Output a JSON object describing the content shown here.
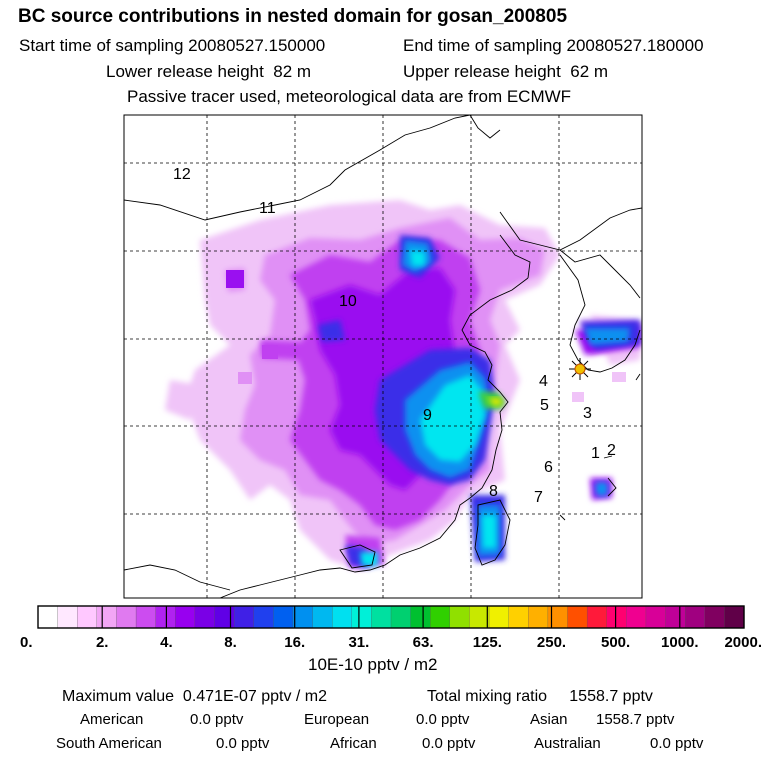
{
  "title": "BC  source contributions in nested domain for gosan_200805",
  "sampling": {
    "start_label": "Start time of sampling",
    "start_value": "20080527.150000",
    "end_label": "End time of sampling",
    "end_value": "20080527.180000"
  },
  "release": {
    "lower_label": "Lower release height",
    "lower_value": "82 m",
    "upper_label": "Upper release height",
    "upper_value": "62 m"
  },
  "note": "Passive tracer used, meteorological data are from ECMWF",
  "region_labels": [
    "12",
    "11",
    "10",
    "9",
    "8",
    "7",
    "6",
    "5",
    "4",
    "3",
    "2",
    "1"
  ],
  "colorbar": {
    "ticks": [
      "0.",
      "2.",
      "4.",
      "8.",
      "16.",
      "31.",
      "63.",
      "125.",
      "250.",
      "500.",
      "1000.",
      "2000."
    ],
    "unit": "10E-10 pptv / m2",
    "colors": [
      "#ffffff",
      "#ffe8ff",
      "#ffc8ff",
      "#f2a6f5",
      "#e07af0",
      "#cc4cf0",
      "#b022f0",
      "#9800f0",
      "#7a00e6",
      "#6000e6",
      "#4020e6",
      "#2040ee",
      "#0060f0",
      "#0090f0",
      "#00b8f0",
      "#00e0f0",
      "#00f0d8",
      "#00e0a0",
      "#00d070",
      "#00c030",
      "#30d000",
      "#90e000",
      "#c8e800",
      "#f0f000",
      "#ffd000",
      "#ffb000",
      "#ff9000",
      "#ff5000",
      "#ff1a3a",
      "#ff0070",
      "#f00090",
      "#d80098",
      "#c00098",
      "#a00080",
      "#800060",
      "#600048"
    ]
  },
  "stats": {
    "max_label": "Maximum value",
    "max_value": "0.471E-07 pptv / m2",
    "total_label": "Total mixing ratio",
    "total_value": "1558.7 pptv"
  },
  "regions": {
    "american_label": "American",
    "american_value": "0.0 pptv",
    "european_label": "European",
    "european_value": "0.0 pptv",
    "asian_label": "Asian",
    "asian_value": "1558.7 pptv",
    "south_american_label": "South American",
    "south_american_value": "0.0 pptv",
    "african_label": "African",
    "african_value": "0.0 pptv",
    "australian_label": "Australian",
    "australian_value": "0.0 pptv"
  },
  "plume_colors": {
    "light": "#f0c4f8",
    "pink": "#e090f5",
    "magenta": "#c040f0",
    "violet": "#9a10f0",
    "blue": "#3a2ee8",
    "azure": "#1090f0",
    "cyan": "#00e6f0",
    "green": "#40d040",
    "yellow": "#e8e800"
  },
  "receptor_icon": "star-burst-icon"
}
